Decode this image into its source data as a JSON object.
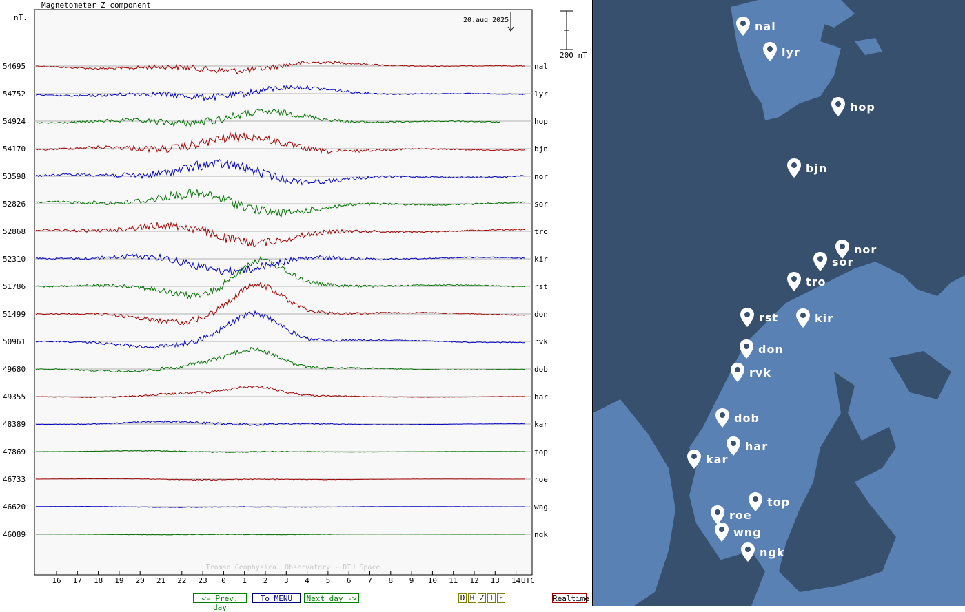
{
  "title": "Magnetometer Z component",
  "unit_label": "nT.",
  "date_label": "20.aug 2025",
  "scale_label": "200 nT",
  "watermark": "Tromso Geophysical Observatory - DTU Space",
  "utc_label": "UTC",
  "nav": {
    "prev": "<- Prev. day",
    "menu": "To MENU",
    "next": "Next day ->",
    "components": [
      "D",
      "H",
      "Z",
      "I",
      "F"
    ],
    "realtime": "Realtime"
  },
  "colors": {
    "red": "#a00000",
    "blue": "#0000c0",
    "green": "#007000",
    "map_bg": "#36506e",
    "land": "#5a81b3"
  },
  "chart_data": {
    "type": "line",
    "title": "Magnetometer Z component",
    "xlabel": "UTC",
    "ylabel": "nT.",
    "x_ticks": [
      "16",
      "17",
      "18",
      "19",
      "20",
      "21",
      "22",
      "23",
      "0",
      "1",
      "2",
      "3",
      "4",
      "5",
      "6",
      "7",
      "8",
      "9",
      "10",
      "11",
      "12",
      "13",
      "14"
    ],
    "x_range_hours": [
      15,
      15.5
    ],
    "scale_bar_nT": 200,
    "grid": true,
    "series": [
      {
        "name": "nal",
        "baseline": 54695,
        "color": "red",
        "activity": 0.8
      },
      {
        "name": "lyr",
        "baseline": 54752,
        "color": "blue",
        "activity": 0.9
      },
      {
        "name": "hop",
        "baseline": 54924,
        "color": "green",
        "activity": 1.0
      },
      {
        "name": "bjn",
        "baseline": 54170,
        "color": "red",
        "activity": 1.2
      },
      {
        "name": "nor",
        "baseline": 53598,
        "color": "blue",
        "activity": 1.3
      },
      {
        "name": "sor",
        "baseline": 52826,
        "color": "green",
        "activity": 1.3
      },
      {
        "name": "tro",
        "baseline": 52868,
        "color": "red",
        "activity": 1.2
      },
      {
        "name": "kir",
        "baseline": 52310,
        "color": "blue",
        "activity": 1.1
      },
      {
        "name": "rst",
        "baseline": 51786,
        "color": "green",
        "activity": 1.0
      },
      {
        "name": "don",
        "baseline": 51499,
        "color": "red",
        "activity": 0.9
      },
      {
        "name": "rvk",
        "baseline": 50961,
        "color": "blue",
        "activity": 0.8
      },
      {
        "name": "dob",
        "baseline": 49680,
        "color": "green",
        "activity": 0.6
      },
      {
        "name": "har",
        "baseline": 49355,
        "color": "red",
        "activity": 0.35
      },
      {
        "name": "kar",
        "baseline": 48389,
        "color": "blue",
        "activity": 0.3
      },
      {
        "name": "top",
        "baseline": 47869,
        "color": "green",
        "activity": 0.15
      },
      {
        "name": "roe",
        "baseline": 46733,
        "color": "red",
        "activity": 0.12
      },
      {
        "name": "wng",
        "baseline": 46620,
        "color": "blue",
        "activity": 0.1
      },
      {
        "name": "ngk",
        "baseline": 46089,
        "color": "green",
        "activity": 0.08
      }
    ]
  },
  "map_stations": [
    "nal",
    "lyr",
    "hop",
    "bjn",
    "nor",
    "sor",
    "tro",
    "rst",
    "kir",
    "don",
    "rvk",
    "dob",
    "har",
    "kar",
    "top",
    "roe",
    "wng",
    "ngk"
  ]
}
